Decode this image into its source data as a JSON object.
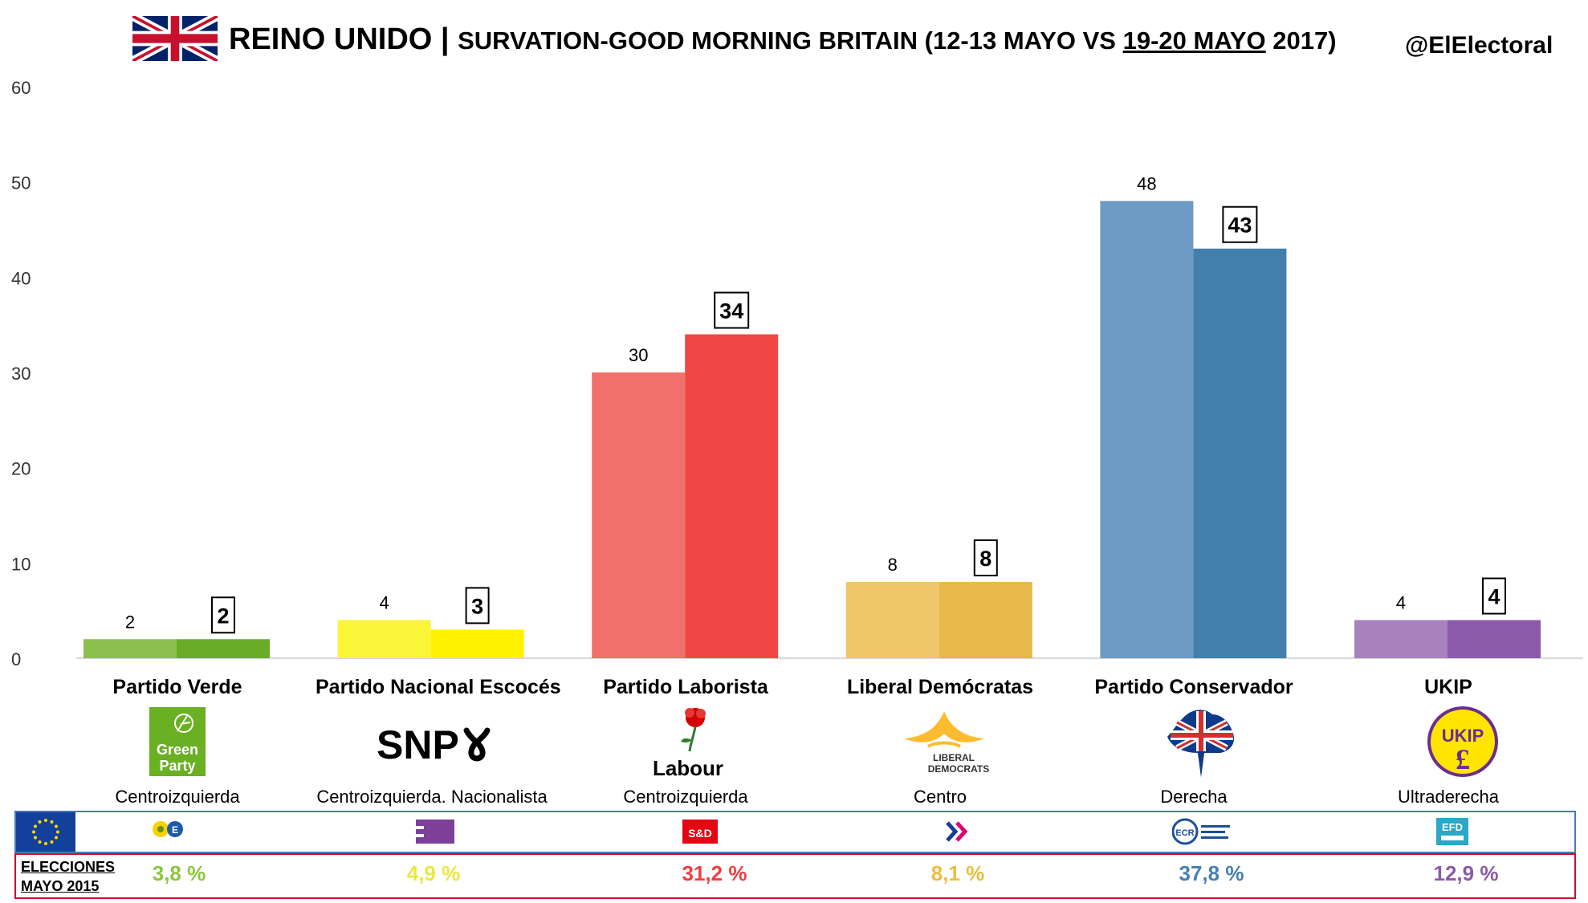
{
  "header": {
    "title_country": "REINO UNIDO",
    "title_sep": " | ",
    "title_pre": "SURVATION-GOOD MORNING BRITAIN (12-13 MAYO VS ",
    "title_underlined": "19-20 MAYO",
    "title_post": " 2017)",
    "handle": "@ElElectoral"
  },
  "chart_data": {
    "type": "bar",
    "title": "REINO UNIDO | SURVATION-GOOD MORNING BRITAIN (12-13 MAYO VS 19-20 MAYO 2017)",
    "ylim": [
      0,
      60
    ],
    "yticks": [
      0,
      10,
      20,
      30,
      40,
      50,
      60
    ],
    "grid": false,
    "categories": [
      "Partido Verde",
      "Partido Nacional Escocés",
      "Partido Laborista",
      "Liberal Demócratas",
      "Partido Conservador",
      "UKIP"
    ],
    "series": [
      {
        "values": [
          2,
          4,
          30,
          8,
          48,
          4
        ]
      },
      {
        "values": [
          2,
          3,
          34,
          8,
          43,
          4
        ]
      }
    ],
    "colors_prev": [
      "#8bbf4f",
      "#fbf53a",
      "#f2706b",
      "#edc76a",
      "#6d9bc3",
      "#a882bc"
    ],
    "colors_new": [
      "#6aac28",
      "#fef200",
      "#ef4744",
      "#e7b94a",
      "#427faa",
      "#8b5ba9"
    ]
  },
  "parties": [
    {
      "name": "Partido Verde",
      "ideology": "Centroizquierda",
      "logo": "green-party-logo",
      "group_icon": "greens-efa-icon",
      "election_2015": "3,8 %",
      "color": "#8dc63f"
    },
    {
      "name": "Partido Nacional Escocés",
      "ideology": "Centroizquierda. Nacionalista",
      "logo": "snp-logo",
      "group_icon": "efa-icon",
      "election_2015": "4,9 %",
      "color": "#e9e83f"
    },
    {
      "name": "Partido Laborista",
      "ideology": "Centroizquierda",
      "logo": "labour-logo",
      "group_icon": "s-and-d-icon",
      "election_2015": "31,2 %",
      "color": "#ef3e42"
    },
    {
      "name": "Liberal Demócratas",
      "ideology": "Centro",
      "logo": "liberal-democrats-logo",
      "group_icon": "alde-icon",
      "election_2015": "8,1 %",
      "color": "#eebd3f"
    },
    {
      "name": "Partido Conservador",
      "ideology": "Derecha",
      "logo": "conservative-logo",
      "group_icon": "ecr-icon",
      "election_2015": "37,8 %",
      "color": "#4a7fb0"
    },
    {
      "name": "UKIP",
      "ideology": "Ultraderecha",
      "logo": "ukip-logo",
      "group_icon": "efdd-icon",
      "election_2015": "12,9 %",
      "color": "#8b5ba9"
    }
  ],
  "logo_text": {
    "green_line1": "Green",
    "green_line2": "Party",
    "snp": "SNP",
    "labour": "Labour",
    "libdem_line1": "LIBERAL",
    "libdem_line2": "DEMOCRATS",
    "ukip": "UKIP",
    "sd": "S&D",
    "ecr": "ECR",
    "efd": "EFD"
  },
  "elections": {
    "label_line1": "ELECCIONES",
    "label_line2": "MAYO 2015"
  }
}
